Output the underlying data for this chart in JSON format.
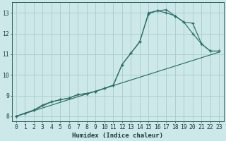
{
  "xlabel": "Humidex (Indice chaleur)",
  "bg_color": "#cce8e8",
  "grid_color": "#aacccc",
  "line_color": "#2d7068",
  "xlim": [
    -0.5,
    23.5
  ],
  "ylim": [
    7.75,
    13.5
  ],
  "xticks": [
    0,
    1,
    2,
    3,
    4,
    5,
    6,
    7,
    8,
    9,
    10,
    11,
    12,
    13,
    14,
    15,
    16,
    17,
    18,
    19,
    20,
    21,
    22,
    23
  ],
  "yticks": [
    8,
    9,
    10,
    11,
    12,
    13
  ],
  "line1": {
    "x": [
      0,
      1,
      2,
      3,
      4,
      5,
      6,
      7,
      8,
      9,
      10,
      11,
      12,
      13,
      14,
      15,
      16,
      17,
      18,
      19,
      20,
      21,
      22,
      23
    ],
    "y": [
      8.0,
      8.15,
      8.3,
      8.55,
      8.7,
      8.8,
      8.88,
      9.05,
      9.1,
      9.2,
      9.35,
      9.5,
      10.5,
      11.05,
      11.6,
      13.0,
      13.1,
      13.0,
      12.85,
      12.55,
      12.0,
      11.5,
      11.15,
      11.15
    ]
  },
  "line2": {
    "x": [
      0,
      2,
      4,
      5,
      6,
      7,
      8,
      9,
      10,
      11,
      12,
      13,
      14,
      15,
      16,
      17,
      18,
      19,
      20,
      21,
      22,
      23
    ],
    "y": [
      8.0,
      8.3,
      8.7,
      8.8,
      8.88,
      9.05,
      9.1,
      9.2,
      9.35,
      9.5,
      10.5,
      11.05,
      11.6,
      12.95,
      13.1,
      13.15,
      12.85,
      12.55,
      12.5,
      11.5,
      11.15,
      11.15
    ]
  },
  "line3": {
    "x": [
      0,
      23
    ],
    "y": [
      8.0,
      11.1
    ]
  }
}
